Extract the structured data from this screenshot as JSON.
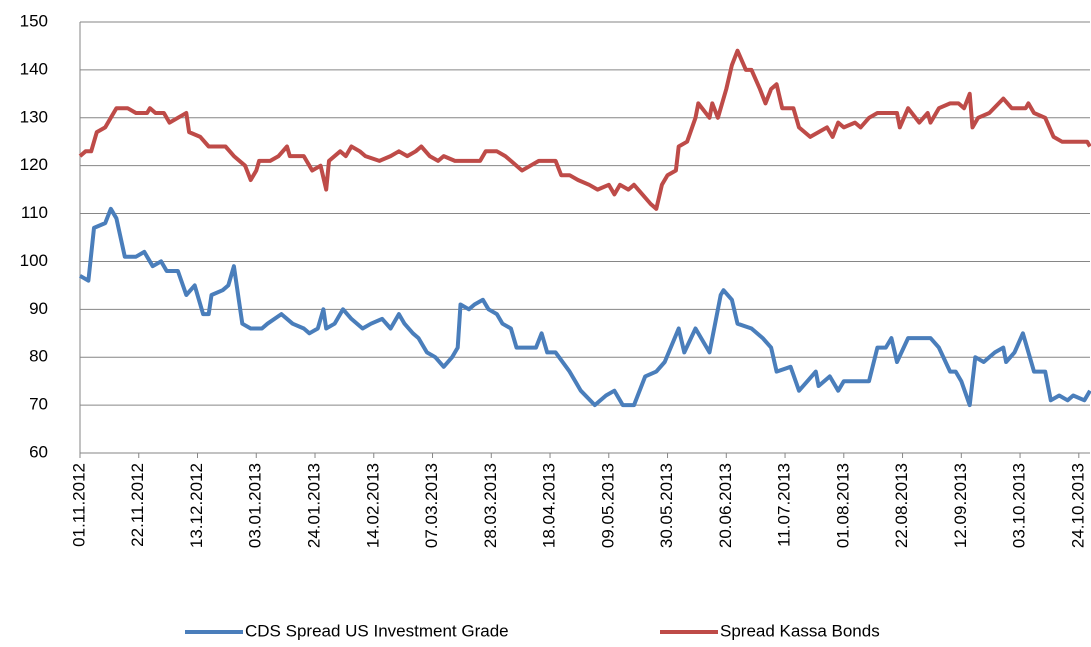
{
  "chart_data": {
    "type": "line",
    "xlim": [
      "01.11.2012",
      "28.10.2013"
    ],
    "xticks": [
      "01.11.2012",
      "22.11.2012",
      "13.12.2012",
      "03.01.2013",
      "24.01.2013",
      "14.02.2013",
      "07.03.2013",
      "28.03.2013",
      "18.04.2013",
      "09.05.2013",
      "30.05.2013",
      "20.06.2013",
      "11.07.2013",
      "01.08.2013",
      "22.08.2013",
      "12.09.2013",
      "03.10.2013",
      "24.10.2013"
    ],
    "ylim": [
      60,
      150
    ],
    "yticks": [
      60,
      70,
      80,
      90,
      100,
      110,
      120,
      130,
      140,
      150
    ],
    "grid": true,
    "legend": "bottom",
    "series": [
      {
        "name": "CDS Spread US Investment Grade",
        "color": "#4a7ebb",
        "x": [
          "01.11.2012",
          "04.11.2012",
          "06.11.2012",
          "10.11.2012",
          "12.11.2012",
          "14.11.2012",
          "17.11.2012",
          "21.11.2012",
          "24.11.2012",
          "27.11.2012",
          "30.11.2012",
          "02.12.2012",
          "06.12.2012",
          "09.12.2012",
          "12.12.2012",
          "15.12.2012",
          "17.12.2012",
          "18.12.2012",
          "22.12.2012",
          "24.12.2012",
          "26.12.2012",
          "29.12.2012",
          "01.01.2013",
          "05.01.2013",
          "07.01.2013",
          "12.01.2013",
          "16.01.2013",
          "20.01.2013",
          "22.01.2013",
          "25.01.2013",
          "27.01.2013",
          "28.01.2013",
          "31.01.2013",
          "03.02.2013",
          "06.02.2013",
          "10.02.2013",
          "13.02.2013",
          "17.02.2013",
          "20.02.2013",
          "23.02.2013",
          "25.02.2013",
          "28.02.2013",
          "02.03.2013",
          "05.03.2013",
          "08.03.2013",
          "11.03.2013",
          "14.03.2013",
          "16.03.2013",
          "17.03.2013",
          "20.03.2013",
          "22.03.2013",
          "25.03.2013",
          "27.03.2013",
          "30.03.2013",
          "01.04.2013",
          "04.04.2013",
          "06.04.2013",
          "13.04.2013",
          "15.04.2013",
          "17.04.2013",
          "20.04.2013",
          "25.04.2013",
          "29.04.2013",
          "04.05.2013",
          "08.05.2013",
          "11.05.2013",
          "14.05.2013",
          "18.05.2013",
          "22.05.2013",
          "26.05.2013",
          "29.05.2013",
          "03.06.2013",
          "05.06.2013",
          "09.06.2013",
          "14.06.2013",
          "16.06.2013",
          "18.06.2013",
          "19.06.2013",
          "22.06.2013",
          "24.06.2013",
          "29.06.2013",
          "03.07.2013",
          "06.07.2013",
          "08.07.2013",
          "13.07.2013",
          "16.07.2013",
          "19.07.2013",
          "22.07.2013",
          "23.07.2013",
          "27.07.2013",
          "30.07.2013",
          "01.08.2013",
          "10.08.2013",
          "13.08.2013",
          "16.08.2013",
          "18.08.2013",
          "20.08.2013",
          "24.08.2013",
          "27.08.2013",
          "01.09.2013",
          "04.09.2013",
          "08.09.2013",
          "10.09.2013",
          "12.09.2013",
          "15.09.2013",
          "17.09.2013",
          "20.09.2013",
          "24.09.2013",
          "27.09.2013",
          "28.09.2013",
          "01.10.2013",
          "04.10.2013",
          "08.10.2013",
          "12.10.2013",
          "14.10.2013",
          "17.10.2013",
          "20.10.2013",
          "22.10.2013",
          "26.10.2013",
          "28.10.2013"
        ],
        "values": [
          97,
          96,
          107,
          108,
          111,
          109,
          101,
          101,
          102,
          99,
          100,
          98,
          98,
          93,
          95,
          89,
          89,
          93,
          94,
          95,
          99,
          87,
          86,
          86,
          87,
          89,
          87,
          86,
          85,
          86,
          90,
          86,
          87,
          90,
          88,
          86,
          87,
          88,
          86,
          89,
          87,
          85,
          84,
          81,
          80,
          78,
          80,
          82,
          91,
          90,
          91,
          92,
          90,
          89,
          87,
          86,
          82,
          82,
          85,
          81,
          81,
          77,
          73,
          70,
          72,
          73,
          70,
          70,
          76,
          77,
          79,
          86,
          81,
          86,
          81,
          87,
          93,
          94,
          92,
          87,
          86,
          84,
          82,
          77,
          78,
          73,
          75,
          77,
          74,
          76,
          73,
          75,
          75,
          82,
          82,
          84,
          79,
          84,
          84,
          84,
          82,
          77,
          77,
          75,
          70,
          80,
          79,
          81,
          82,
          79,
          81,
          85,
          77,
          77,
          71,
          72,
          71,
          72,
          71,
          73
        ]
      },
      {
        "name": "Spread Kassa Bonds",
        "color": "#be4b48",
        "x": [
          "01.11.2012",
          "03.11.2012",
          "05.11.2012",
          "07.11.2012",
          "10.11.2012",
          "12.11.2012",
          "14.11.2012",
          "18.11.2012",
          "21.11.2012",
          "25.11.2012",
          "26.11.2012",
          "28.11.2012",
          "01.12.2012",
          "03.12.2012",
          "06.12.2012",
          "09.12.2012",
          "10.12.2012",
          "14.12.2012",
          "17.12.2012",
          "23.12.2012",
          "26.12.2012",
          "30.12.2012",
          "01.01.2013",
          "03.01.2013",
          "04.01.2013",
          "08.01.2013",
          "11.01.2013",
          "14.01.2013",
          "15.01.2013",
          "20.01.2013",
          "23.01.2013",
          "26.01.2013",
          "28.01.2013",
          "29.01.2013",
          "02.02.2013",
          "04.02.2013",
          "06.02.2013",
          "09.02.2013",
          "11.02.2013",
          "16.02.2013",
          "20.02.2013",
          "23.02.2013",
          "26.02.2013",
          "01.03.2013",
          "03.03.2013",
          "06.03.2013",
          "09.03.2013",
          "11.03.2013",
          "15.03.2013",
          "24.03.2013",
          "26.03.2013",
          "30.03.2013",
          "02.04.2013",
          "04.04.2013",
          "08.04.2013",
          "11.04.2013",
          "14.04.2013",
          "20.04.2013",
          "22.04.2013",
          "25.04.2013",
          "28.04.2013",
          "02.05.2013",
          "05.05.2013",
          "09.05.2013",
          "11.05.2013",
          "13.05.2013",
          "16.05.2013",
          "18.05.2013",
          "21.05.2013",
          "24.05.2013",
          "26.05.2013",
          "28.05.2013",
          "30.05.2013",
          "02.06.2013",
          "03.06.2013",
          "06.06.2013",
          "09.06.2013",
          "10.06.2013",
          "14.06.2013",
          "15.06.2013",
          "17.06.2013",
          "20.06.2013",
          "22.06.2013",
          "24.06.2013",
          "27.06.2013",
          "29.06.2013",
          "02.07.2013",
          "04.07.2013",
          "06.07.2013",
          "08.07.2013",
          "10.07.2013",
          "14.07.2013",
          "16.07.2013",
          "20.07.2013",
          "23.07.2013",
          "26.07.2013",
          "28.07.2013",
          "30.07.2013",
          "01.08.2013",
          "05.08.2013",
          "07.08.2013",
          "10.08.2013",
          "13.08.2013",
          "20.08.2013",
          "21.08.2013",
          "24.08.2013",
          "28.08.2013",
          "31.08.2013",
          "01.09.2013",
          "04.09.2013",
          "08.09.2013",
          "11.09.2013",
          "13.09.2013",
          "15.09.2013",
          "16.09.2013",
          "18.09.2013",
          "22.09.2013",
          "27.09.2013",
          "30.09.2013",
          "05.10.2013",
          "06.10.2013",
          "08.10.2013",
          "12.10.2013",
          "15.10.2013",
          "18.10.2013",
          "24.10.2013",
          "27.10.2013",
          "28.10.2013"
        ],
        "values": [
          122,
          123,
          123,
          127,
          128,
          130,
          132,
          132,
          131,
          131,
          132,
          131,
          131,
          129,
          130,
          131,
          127,
          126,
          124,
          124,
          122,
          120,
          117,
          119,
          121,
          121,
          122,
          124,
          122,
          122,
          119,
          120,
          115,
          121,
          123,
          122,
          124,
          123,
          122,
          121,
          122,
          123,
          122,
          123,
          124,
          122,
          121,
          122,
          121,
          121,
          123,
          123,
          122,
          121,
          119,
          120,
          121,
          121,
          118,
          118,
          117,
          116,
          115,
          116,
          114,
          116,
          115,
          116,
          114,
          112,
          111,
          116,
          118,
          119,
          124,
          125,
          130,
          133,
          130,
          133,
          130,
          136,
          141,
          144,
          140,
          140,
          136,
          133,
          136,
          137,
          132,
          132,
          128,
          126,
          127,
          128,
          126,
          129,
          128,
          129,
          128,
          130,
          131,
          131,
          128,
          132,
          129,
          131,
          129,
          132,
          133,
          133,
          132,
          135,
          128,
          130,
          131,
          134,
          132,
          132,
          133,
          131,
          130,
          126,
          125,
          125,
          125,
          124
        ]
      }
    ]
  }
}
